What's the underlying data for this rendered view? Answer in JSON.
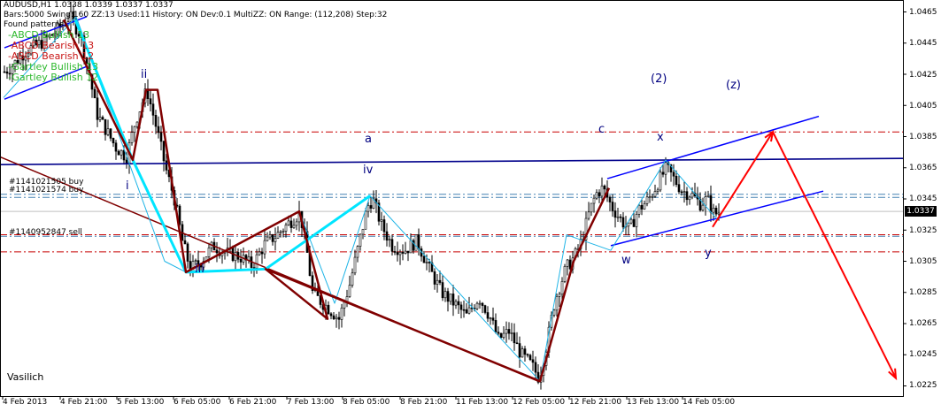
{
  "header": {
    "title": "AUDUSD,H1  1.0338 1.0339 1.0337 1.0337",
    "info": "Bars:5000  Swing:160  ZZ:13  Used:11  History: ON Dev:0.1  MultiZZ: ON  Range: (112,208)  Step:32",
    "found_label": "Found patterns:"
  },
  "patterns": [
    {
      "text": "-ABCD Bullish 13",
      "color": "#2db82d"
    },
    {
      "text": "-ABCD Bearish 13",
      "color": "#c81414"
    },
    {
      "text": "-ABCD Bearish 12",
      "color": "#c81414"
    },
    {
      "text": "-Gartley Bullish 13",
      "color": "#2db82d"
    },
    {
      "text": "-Gartley Bullish 12",
      "color": "#2db82d"
    }
  ],
  "wave_labels": {
    "ii": "ii",
    "i": "i",
    "iii": "iii",
    "iv": "iv",
    "a": "a",
    "c": "c",
    "x": "x",
    "w": "w",
    "y": "y",
    "wave2": "(2)",
    "wavez": "(z)"
  },
  "orders": {
    "buy1": "#1141021505 buy",
    "buy2": "#1141021574 buy",
    "sell": "#1140952847 sell"
  },
  "author": "Vasilich",
  "current_price": "1.0337",
  "colors": {
    "axis": "#000000",
    "level_red": "#c80000",
    "order_line": "#4682b4",
    "trend_blue": "#00008b",
    "channel_blue": "#0000ff",
    "zigzag_brown": "#800000",
    "zigzag_cyan": "#00e5ff",
    "zigzag_lightblue": "#1eb4e6",
    "projection_red": "#ff0000",
    "candle": "#000000"
  },
  "chart_data": {
    "type": "candlestick",
    "symbol": "AUDUSD",
    "timeframe": "H1",
    "y_ticks": [
      "1.0465",
      "1.0445",
      "1.0425",
      "1.0405",
      "1.0385",
      "1.0365",
      "1.0345",
      "1.0325",
      "1.0305",
      "1.0285",
      "1.0265",
      "1.0245",
      "1.0225"
    ],
    "ylim": [
      1.022,
      1.047
    ],
    "x_ticks": [
      "4 Feb 2013",
      "4 Feb 21:00",
      "5 Feb 13:00",
      "6 Feb 05:00",
      "6 Feb 21:00",
      "7 Feb 13:00",
      "8 Feb 05:00",
      "8 Feb 21:00",
      "11 Feb 13:00",
      "12 Feb 05:00",
      "12 Feb 21:00",
      "13 Feb 13:00",
      "14 Feb 05:00"
    ],
    "levels_red": [
      1.0388,
      1.0322,
      1.0311
    ],
    "order_levels": [
      1.0348,
      1.0346,
      1.0321
    ],
    "current_price": 1.0337,
    "price_path": [
      [
        0,
        1.0425
      ],
      [
        12,
        1.043
      ],
      [
        28,
        1.044
      ],
      [
        45,
        1.0445
      ],
      [
        62,
        1.0452
      ],
      [
        78,
        1.0462
      ],
      [
        90,
        1.045
      ],
      [
        100,
        1.0425
      ],
      [
        108,
        1.04
      ],
      [
        118,
        1.039
      ],
      [
        130,
        1.0378
      ],
      [
        142,
        1.0372
      ],
      [
        152,
        1.0395
      ],
      [
        165,
        1.0415
      ],
      [
        176,
        1.039
      ],
      [
        186,
        1.0365
      ],
      [
        196,
        1.0345
      ],
      [
        205,
        1.0318
      ],
      [
        214,
        1.03
      ],
      [
        226,
        1.0305
      ],
      [
        240,
        1.0315
      ],
      [
        256,
        1.031
      ],
      [
        270,
        1.0308
      ],
      [
        284,
        1.0302
      ],
      [
        298,
        1.0316
      ],
      [
        312,
        1.0322
      ],
      [
        326,
        1.033
      ],
      [
        338,
        1.0336
      ],
      [
        346,
        1.031
      ],
      [
        352,
        1.0285
      ],
      [
        360,
        1.028
      ],
      [
        370,
        1.0275
      ],
      [
        382,
        1.0268
      ],
      [
        394,
        1.029
      ],
      [
        404,
        1.0315
      ],
      [
        414,
        1.034
      ],
      [
        420,
        1.0345
      ],
      [
        430,
        1.0328
      ],
      [
        442,
        1.0315
      ],
      [
        456,
        1.0312
      ],
      [
        470,
        1.0318
      ],
      [
        484,
        1.03
      ],
      [
        498,
        1.0285
      ],
      [
        512,
        1.0278
      ],
      [
        526,
        1.027
      ],
      [
        540,
        1.0282
      ],
      [
        552,
        1.027
      ],
      [
        562,
        1.0255
      ],
      [
        574,
        1.026
      ],
      [
        588,
        1.0245
      ],
      [
        600,
        1.0238
      ],
      [
        608,
        1.023
      ],
      [
        616,
        1.025
      ],
      [
        626,
        1.028
      ],
      [
        638,
        1.03
      ],
      [
        648,
        1.0308
      ],
      [
        656,
        1.0318
      ],
      [
        664,
        1.0335
      ],
      [
        672,
        1.0348
      ],
      [
        680,
        1.0352
      ],
      [
        690,
        1.034
      ],
      [
        700,
        1.0332
      ],
      [
        710,
        1.0325
      ],
      [
        720,
        1.0338
      ],
      [
        732,
        1.0345
      ],
      [
        742,
        1.0355
      ],
      [
        752,
        1.0365
      ],
      [
        760,
        1.0358
      ],
      [
        770,
        1.035
      ],
      [
        780,
        1.0348
      ],
      [
        790,
        1.0342
      ],
      [
        798,
        1.0345
      ],
      [
        806,
        1.0335
      ],
      [
        812,
        1.0337
      ]
    ],
    "zigzag_brown": [
      [
        72,
        1.046
      ],
      [
        150,
        1.037
      ],
      [
        165,
        1.0415
      ],
      [
        178,
        1.0415
      ],
      [
        210,
        1.0298
      ],
      [
        338,
        1.0337
      ],
      [
        370,
        1.0268
      ],
      [
        300,
        1.03
      ],
      [
        610,
        1.0228
      ],
      [
        648,
        1.0305
      ],
      [
        688,
        1.0352
      ]
    ],
    "zigzag_cyan": [
      [
        85,
        1.046
      ],
      [
        150,
        1.037
      ],
      [
        210,
        1.0298
      ],
      [
        300,
        1.03
      ],
      [
        418,
        1.0347
      ]
    ],
    "zigzag_lightblue": [
      [
        4,
        1.041
      ],
      [
        86,
        1.0462
      ],
      [
        186,
        1.0305
      ],
      [
        210,
        1.0298
      ],
      [
        338,
        1.0337
      ],
      [
        378,
        1.0278
      ],
      [
        418,
        1.0347
      ],
      [
        610,
        1.0228
      ],
      [
        640,
        1.0322
      ],
      [
        690,
        1.0312
      ],
      [
        752,
        1.037
      ],
      [
        810,
        1.0332
      ]
    ],
    "trend_lines": [
      {
        "kind": "blue",
        "points": [
          [
            0,
            1.0367
          ],
          [
            1020,
            1.0371
          ]
        ]
      },
      {
        "kind": "brown",
        "points": [
          [
            0,
            1.0372
          ],
          [
            608,
            1.0228
          ]
        ]
      },
      {
        "kind": "channel",
        "points": [
          [
            686,
            1.0358
          ],
          [
            925,
            1.0398
          ]
        ]
      },
      {
        "kind": "channel",
        "points": [
          [
            690,
            1.0315
          ],
          [
            930,
            1.035
          ]
        ]
      },
      {
        "kind": "channel",
        "points": [
          [
            5,
            1.0442
          ],
          [
            98,
            1.0462
          ]
        ]
      },
      {
        "kind": "channel",
        "points": [
          [
            5,
            1.0409
          ],
          [
            98,
            1.043
          ]
        ]
      }
    ],
    "projection": [
      [
        805,
        1.0327
      ],
      [
        873,
        1.0388
      ],
      [
        1012,
        1.023
      ]
    ]
  }
}
